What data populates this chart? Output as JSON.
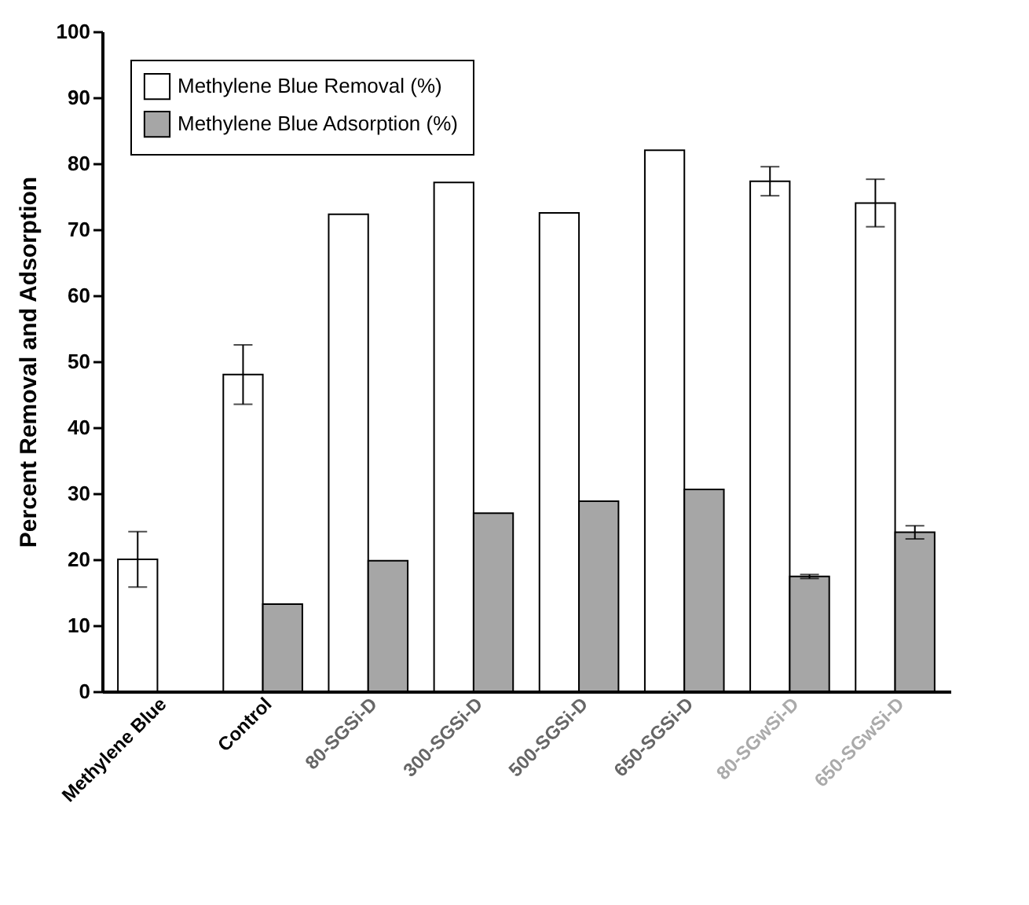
{
  "chart_data": {
    "type": "bar",
    "ylabel": "Percent Removal and Adsorption",
    "categories": [
      "Methylene Blue",
      "Control",
      "80-SGSi-D",
      "300-SGSi-D",
      "500-SGSi-D",
      "650-SGSi-D",
      "80-SGwSi-D",
      "650-SGwSi-D"
    ],
    "series": [
      {
        "name": "Methylene Blue Removal (%)",
        "color": "#ffffff",
        "values": [
          20,
          48,
          72.3,
          77.1,
          72.5,
          82,
          77.3,
          74
        ],
        "errors": [
          4.2,
          4.5,
          null,
          null,
          null,
          null,
          2.2,
          3.6
        ]
      },
      {
        "name": "Methylene Blue Adsorption (%)",
        "color": "#a6a6a6",
        "values": [
          null,
          13.2,
          19.8,
          27,
          28.8,
          30.6,
          17.4,
          24.1
        ],
        "errors": [
          null,
          null,
          null,
          null,
          null,
          null,
          0.3,
          1
        ]
      }
    ],
    "ylim": [
      0,
      100
    ],
    "yticks": [
      0,
      10,
      20,
      30,
      40,
      50,
      60,
      70,
      80,
      90,
      100
    ],
    "grid": false,
    "legend": "top left"
  }
}
